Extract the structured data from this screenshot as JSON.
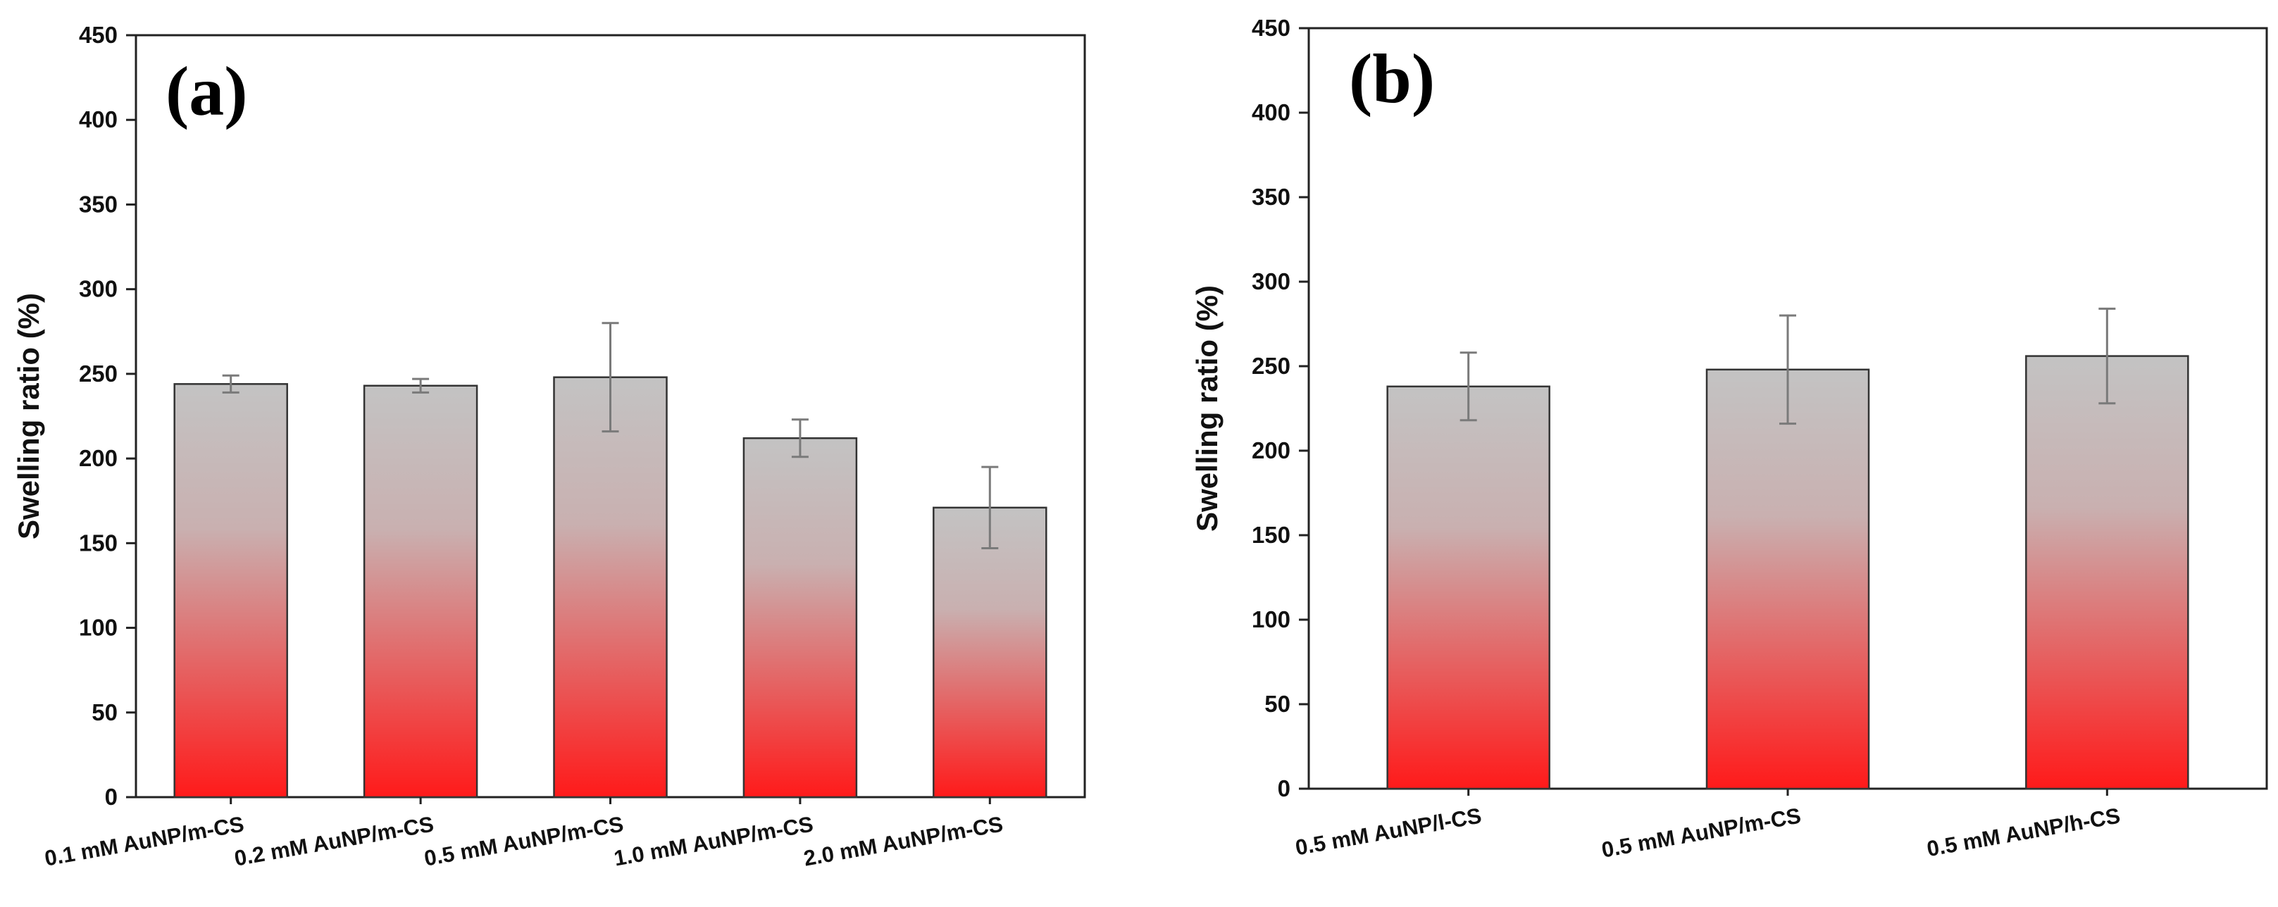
{
  "colors": {
    "bar_top": "#c3c3c3",
    "bar_bottom": "#ff1a1a",
    "axis": "#222222",
    "error_bar": "#7a7a7a",
    "text": "#111111"
  },
  "chart_data": [
    {
      "type": "bar",
      "panel_label": "(a)",
      "categories": [
        "0.1 mM AuNP/m-CS",
        "0.2 mM AuNP/m-CS",
        "0.5 mM AuNP/m-CS",
        "1.0 mM AuNP/m-CS",
        "2.0 mM AuNP/m-CS"
      ],
      "values": [
        244,
        243,
        248,
        212,
        171
      ],
      "errors": [
        5,
        4,
        32,
        11,
        24
      ],
      "ylabel": "Swelling ratio (%)",
      "xlabel": "",
      "ylim": [
        0,
        450
      ],
      "yticks": [
        0,
        50,
        100,
        150,
        200,
        250,
        300,
        350,
        400,
        450
      ],
      "grid": false,
      "legend": false
    },
    {
      "type": "bar",
      "panel_label": "(b)",
      "categories": [
        "0.5 mM AuNP/l-CS",
        "0.5 mM AuNP/m-CS",
        "0.5 mM AuNP/h-CS"
      ],
      "values": [
        238,
        248,
        256
      ],
      "errors": [
        20,
        32,
        28
      ],
      "ylabel": "Swelling ratio (%)",
      "xlabel": "",
      "ylim": [
        0,
        450
      ],
      "yticks": [
        0,
        50,
        100,
        150,
        200,
        250,
        300,
        350,
        400,
        450
      ],
      "grid": false,
      "legend": false
    }
  ]
}
